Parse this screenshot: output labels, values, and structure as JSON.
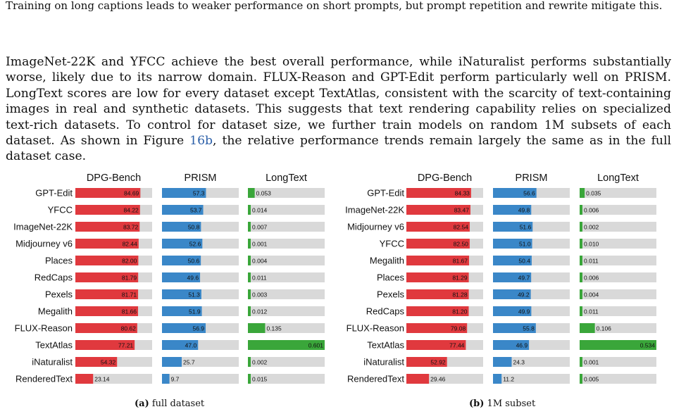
{
  "top_caption": "Training on long captions leads to weaker performance on short prompts, but prompt repetition and rewrite mitigate this.",
  "paragraph": {
    "before_ref": "ImageNet-22K and YFCC achieve the best overall performance, while iNaturalist performs substantially worse, likely due to its narrow domain. FLUX-Reason and GPT-Edit perform particularly well on PRISM. LongText scores are low for every dataset except TextAtlas, consistent with the scarcity of text-containing images in real and synthetic datasets. This suggests that text rendering capability relies on specialized text-rich datasets. To control for dataset size, we further train models on random 1M subsets of each dataset. As shown in Figure ",
    "ref": "16b",
    "after_ref": ", the relative performance trends remain largely the same as in the full dataset case."
  },
  "colors": {
    "dpg": "#e0393e",
    "prism": "#3a87c8",
    "longtext": "#3aa63a",
    "track": "#d9d9d9"
  },
  "chart_data": [
    {
      "type": "bar",
      "panel_label": "(a)",
      "caption": "full dataset",
      "categories": [
        "GPT-Edit",
        "YFCC",
        "ImageNet-22K",
        "Midjourney v6",
        "Places",
        "RedCaps",
        "Pexels",
        "Megalith",
        "FLUX-Reason",
        "TextAtlas",
        "iNaturalist",
        "RenderedText"
      ],
      "series": [
        {
          "name": "DPG-Bench",
          "values": [
            84.69,
            84.22,
            83.72,
            82.44,
            82.0,
            81.79,
            81.71,
            81.66,
            80.62,
            77.21,
            54.32,
            23.14
          ],
          "labels": [
            "84.69",
            "84.22",
            "83.72",
            "82.44",
            "82.00",
            "81.79",
            "81.71",
            "81.66",
            "80.62",
            "77.21",
            "54.32",
            "23.14"
          ],
          "xlim": [
            0,
            100
          ]
        },
        {
          "name": "PRISM",
          "values": [
            57.3,
            53.7,
            50.8,
            52.6,
            50.6,
            49.6,
            51.3,
            51.9,
            56.9,
            47.0,
            25.7,
            9.7
          ],
          "labels": [
            "57.3",
            "53.7",
            "50.8",
            "52.6",
            "50.6",
            "49.6",
            "51.3",
            "51.9",
            "56.9",
            "47.0",
            "25.7",
            "9.7"
          ],
          "xlim": [
            0,
            100
          ]
        },
        {
          "name": "LongText",
          "values": [
            0.053,
            0.014,
            0.007,
            0.001,
            0.004,
            0.011,
            0.003,
            0.012,
            0.135,
            0.601,
            0.002,
            0.015
          ],
          "labels": [
            "0.053",
            "0.014",
            "0.007",
            "0.001",
            "0.004",
            "0.011",
            "0.003",
            "0.012",
            "0.135",
            "0.601",
            "0.002",
            "0.015"
          ],
          "xlim": [
            0,
            0.601
          ]
        }
      ]
    },
    {
      "type": "bar",
      "panel_label": "(b)",
      "caption": "1M subset",
      "categories": [
        "GPT-Edit",
        "ImageNet-22K",
        "Midjourney v6",
        "YFCC",
        "Megalith",
        "Places",
        "Pexels",
        "RedCaps",
        "FLUX-Reason",
        "TextAtlas",
        "iNaturalist",
        "RenderedText"
      ],
      "series": [
        {
          "name": "DPG-Bench",
          "values": [
            84.33,
            83.47,
            82.54,
            82.5,
            81.67,
            81.29,
            81.28,
            81.2,
            79.08,
            77.44,
            52.92,
            29.46
          ],
          "labels": [
            "84.33",
            "83.47",
            "82.54",
            "82.50",
            "81.67",
            "81.29",
            "81.28",
            "81.20",
            "79.08",
            "77.44",
            "52.92",
            "29.46"
          ],
          "xlim": [
            0,
            100
          ]
        },
        {
          "name": "PRISM",
          "values": [
            56.6,
            49.8,
            51.6,
            51.0,
            50.4,
            49.7,
            49.2,
            49.9,
            55.8,
            46.9,
            24.3,
            11.2
          ],
          "labels": [
            "56.6",
            "49.8",
            "51.6",
            "51.0",
            "50.4",
            "49.7",
            "49.2",
            "49.9",
            "55.8",
            "46.9",
            "24.3",
            "11.2"
          ],
          "xlim": [
            0,
            100
          ]
        },
        {
          "name": "LongText",
          "values": [
            0.035,
            0.006,
            0.002,
            0.01,
            0.011,
            0.006,
            0.004,
            0.011,
            0.106,
            0.534,
            0.001,
            0.005
          ],
          "labels": [
            "0.035",
            "0.006",
            "0.002",
            "0.010",
            "0.011",
            "0.006",
            "0.004",
            "0.011",
            "0.106",
            "0.534",
            "0.001",
            "0.005"
          ],
          "xlim": [
            0,
            0.534
          ]
        }
      ]
    }
  ]
}
